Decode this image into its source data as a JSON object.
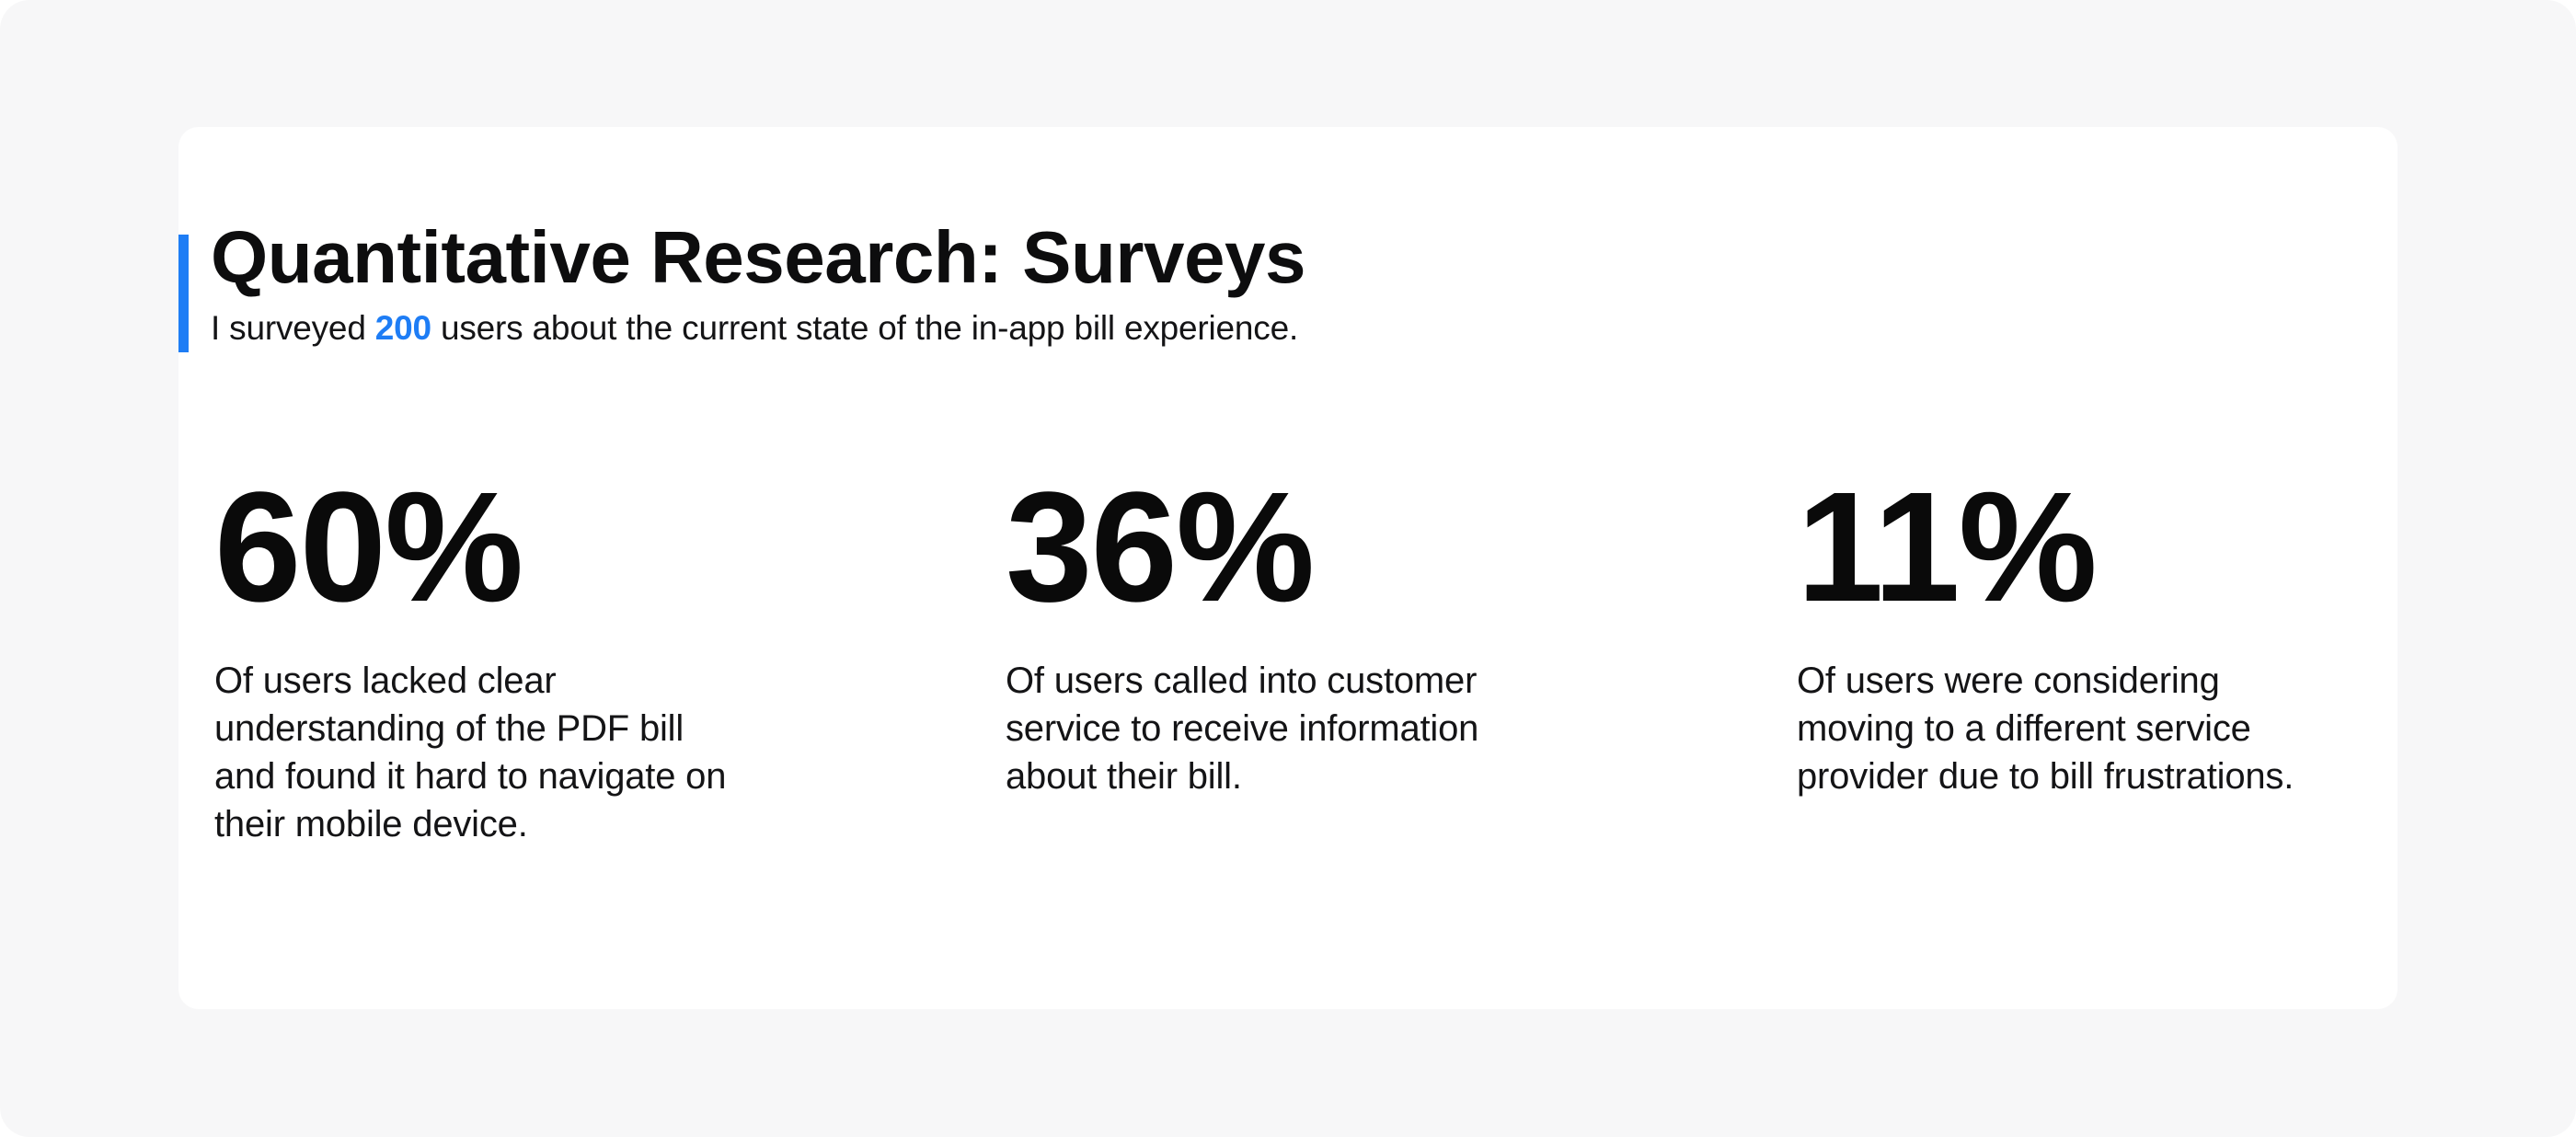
{
  "header": {
    "title": "Quantitative Research: Surveys",
    "subtitle": {
      "prefix": "I surveyed ",
      "highlight": "200",
      "suffix": " users about the current state of the in-app bill experience."
    }
  },
  "stats": [
    {
      "value": "60%",
      "description": "Of users lacked clear\nunderstanding of the PDF bill\nand found it hard to navigate on\ntheir mobile device."
    },
    {
      "value": "36%",
      "description": "Of users called into customer\nservice to receive information\nabout their bill."
    },
    {
      "value": "11%",
      "description": "Of users were considering\nmoving to a different service\nprovider due to bill frustrations."
    }
  ],
  "colors": {
    "accent": "#1e7df5",
    "canvas-bg": "#f7f7f8",
    "card-bg": "#ffffff",
    "title-text": "#0d0d0e",
    "body-text": "#141416"
  }
}
